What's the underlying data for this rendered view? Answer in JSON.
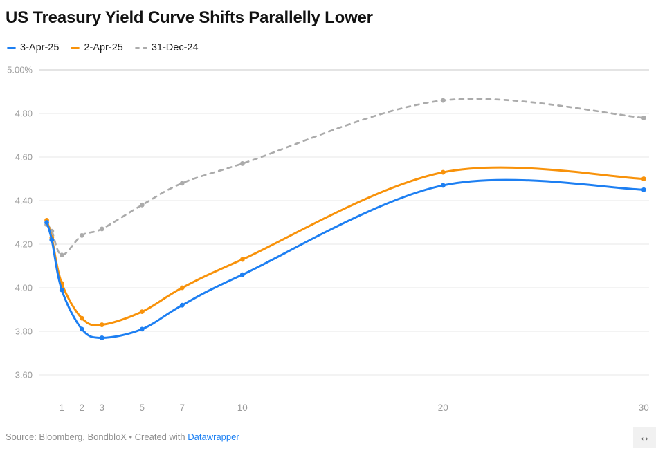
{
  "header": {
    "title": "US Treasury Yield Curve Shifts Parallelly Lower"
  },
  "legend": [
    {
      "label": "3-Apr-25",
      "color": "#1d7ff2",
      "style": "solid"
    },
    {
      "label": "2-Apr-25",
      "color": "#f8920a",
      "style": "solid"
    },
    {
      "label": "31-Dec-24",
      "color": "#ababab",
      "style": "dashed"
    }
  ],
  "chart_data": {
    "type": "line",
    "title": "US Treasury Yield Curve Shifts Parallelly Lower",
    "xlabel": "",
    "ylabel": "",
    "x": [
      0.25,
      0.5,
      1,
      2,
      3,
      5,
      7,
      10,
      20,
      30
    ],
    "x_ticks": [
      1,
      2,
      3,
      5,
      7,
      10,
      20,
      30
    ],
    "x_tick_labels": [
      "1",
      "2",
      "3",
      "5",
      "7",
      "10",
      "20",
      "30"
    ],
    "y_ticks": [
      5.0,
      4.8,
      4.6,
      4.4,
      4.2,
      4.0,
      3.8,
      3.6
    ],
    "y_tick_labels": [
      "5.00%",
      "4.80",
      "4.60",
      "4.40",
      "4.20",
      "4.00",
      "3.80",
      "3.60"
    ],
    "ylim": [
      3.54,
      5.0
    ],
    "grid": true,
    "legend_position": "top-left",
    "series": [
      {
        "name": "3-Apr-25",
        "color": "#1d7ff2",
        "dash": false,
        "values": [
          4.3,
          4.22,
          3.99,
          3.81,
          3.77,
          3.81,
          3.92,
          4.06,
          4.47,
          4.45
        ]
      },
      {
        "name": "2-Apr-25",
        "color": "#f8920a",
        "dash": false,
        "values": [
          4.31,
          4.23,
          4.02,
          3.86,
          3.83,
          3.89,
          4.0,
          4.13,
          4.53,
          4.5
        ]
      },
      {
        "name": "31-Dec-24",
        "color": "#ababab",
        "dash": true,
        "values": [
          4.29,
          4.26,
          4.15,
          4.24,
          4.27,
          4.38,
          4.48,
          4.57,
          4.86,
          4.78
        ]
      }
    ],
    "colors": {
      "grid": "#e7e7e7",
      "grid_top": "#c9c9c9",
      "axis_labels": "#9b9b9b"
    }
  },
  "footer": {
    "prefix": "Source: Bloomberg, BondbloX • Created with",
    "link_label": "Datawrapper",
    "link_color": "#1d81f3"
  },
  "resize": {
    "icon": "↔"
  }
}
